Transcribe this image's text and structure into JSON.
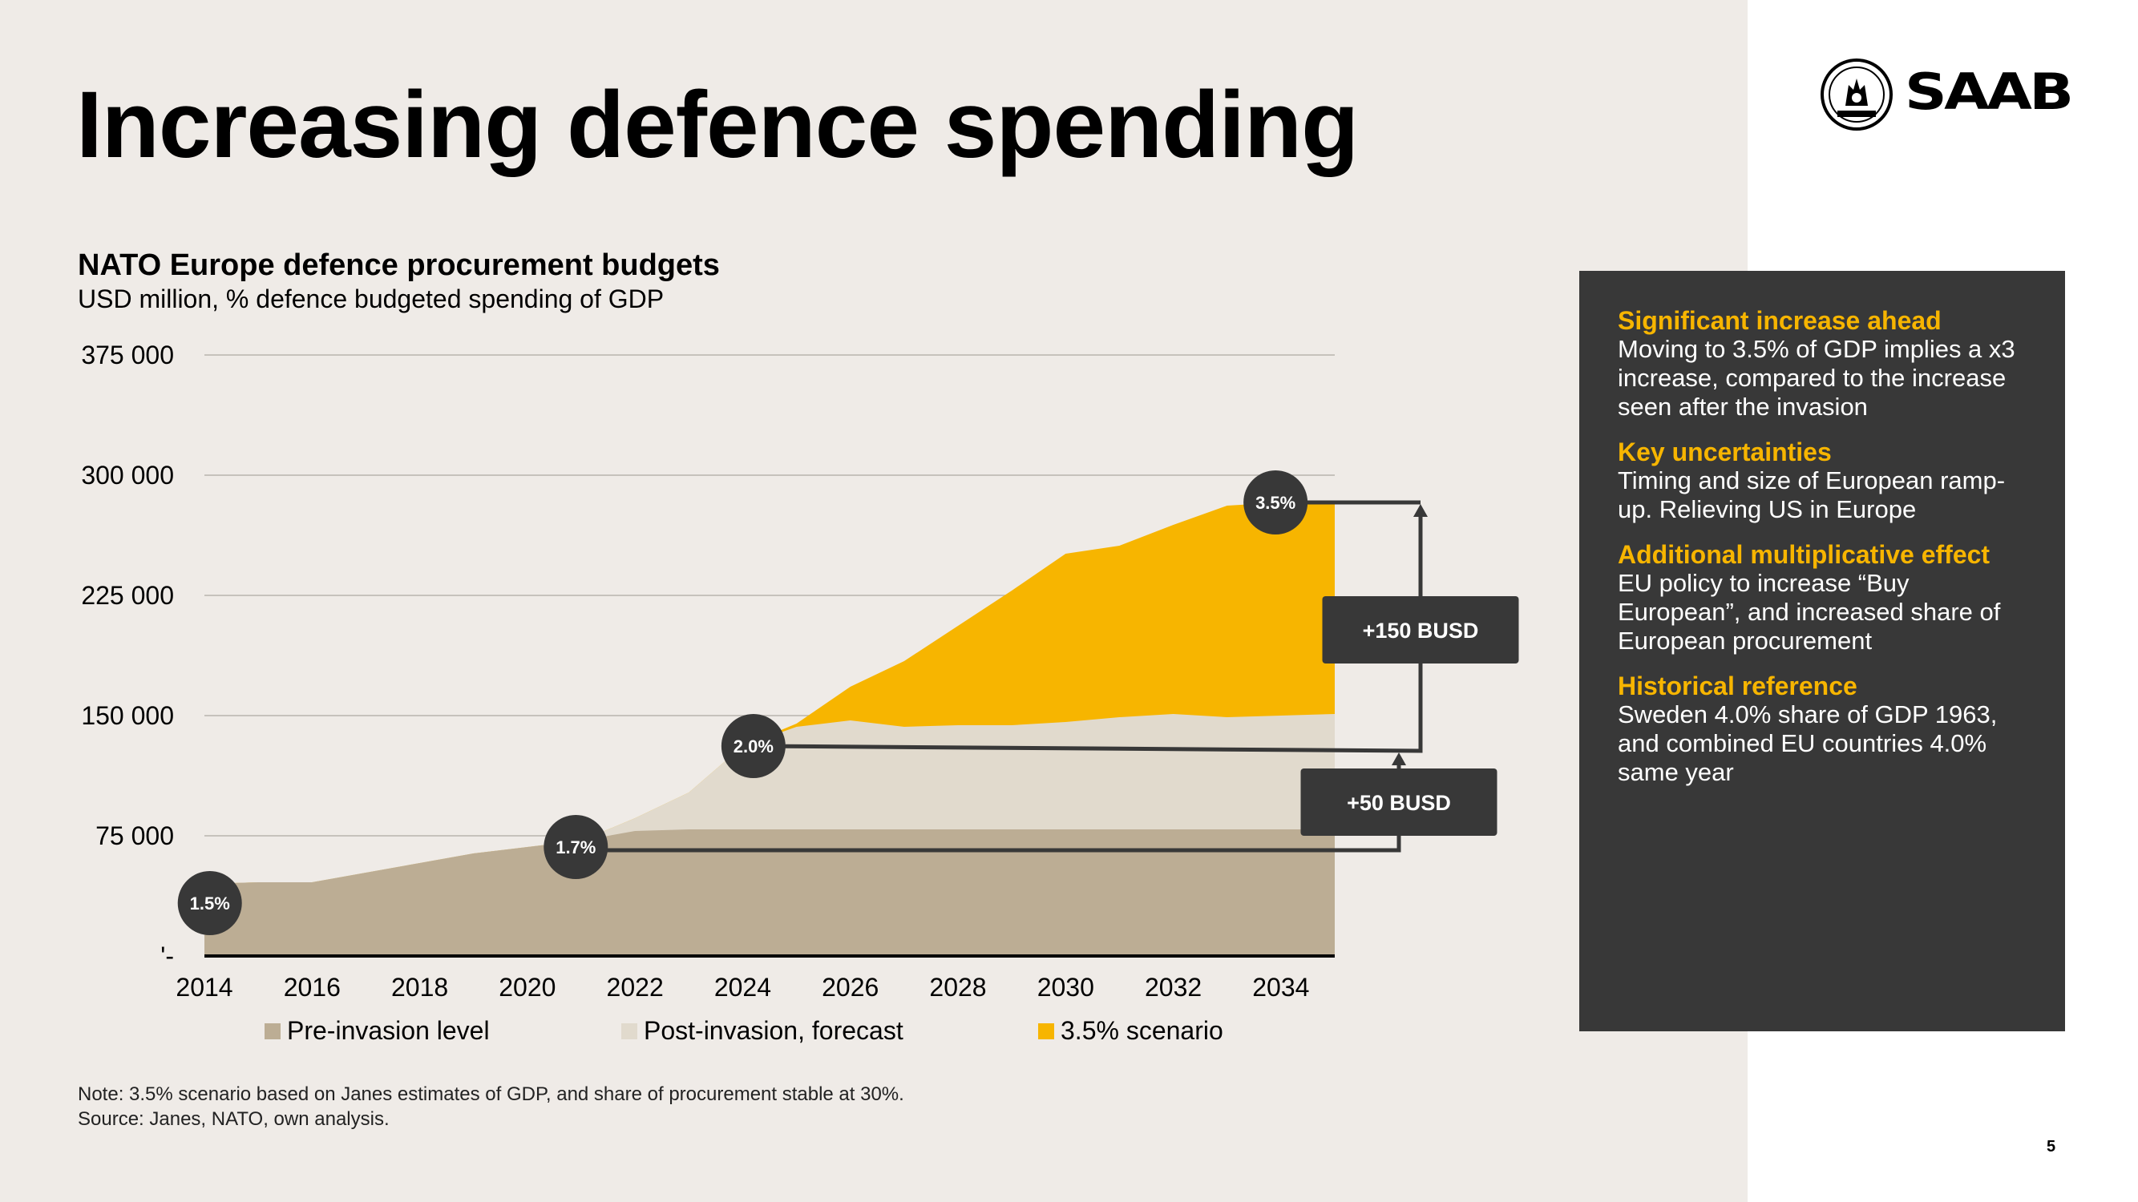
{
  "slide": {
    "title": "Increasing defence spending",
    "notes": [
      "Note: 3.5% scenario based on Janes estimates of GDP, and share of procurement stable at 30%.",
      "Source: Janes, NATO, own analysis."
    ],
    "page_number": "5"
  },
  "logo": {
    "text": "SAAB",
    "icon": "saab-griffin-emblem-icon"
  },
  "info_box": {
    "sections": [
      {
        "heading": "Significant increase ahead",
        "body": "Moving to 3.5% of GDP implies a x3 increase, compared to the increase seen after the invasion"
      },
      {
        "heading": "Key uncertainties",
        "body": "Timing and size of European ramp-up. Relieving US in Europe"
      },
      {
        "heading": "Additional multiplicative effect",
        "body": "EU policy to increase “Buy European”, and increased share of European  procurement"
      },
      {
        "heading": "Historical reference",
        "body": "Sweden 4.0% share of GDP 1963, and combined EU countries 4.0% same year"
      }
    ]
  },
  "chart_data": {
    "type": "area",
    "title": "NATO Europe defence procurement budgets",
    "subtitle": "USD million, % defence budgeted spending of GDP",
    "x": [
      2014,
      2015,
      2016,
      2017,
      2018,
      2019,
      2020,
      2021,
      2022,
      2023,
      2024,
      2025,
      2026,
      2027,
      2028,
      2029,
      2030,
      2031,
      2032,
      2033,
      2034,
      2035
    ],
    "xticks": [
      "2014",
      "2016",
      "2018",
      "2020",
      "2022",
      "2024",
      "2026",
      "2028",
      "2030",
      "2032",
      "2034"
    ],
    "yticks": [
      "'-",
      "75 000",
      "150 000",
      "225 000",
      "300 000",
      "375 000"
    ],
    "ytick_values": [
      0,
      75000,
      150000,
      225000,
      300000,
      375000
    ],
    "ylim": [
      0,
      375000
    ],
    "grid": true,
    "legend_position": "bottom",
    "series": [
      {
        "name": "Pre-invasion level",
        "color": "#bcad94",
        "values": [
          45000,
          46000,
          46000,
          52000,
          58000,
          64000,
          68000,
          72000,
          78000,
          79000,
          79000,
          79000,
          79000,
          79000,
          79000,
          79000,
          79000,
          79000,
          79000,
          79000,
          79000,
          79000
        ]
      },
      {
        "name": "Post-invasion, forecast",
        "color": "#e1dacd",
        "values": [
          45000,
          46000,
          46000,
          52000,
          58000,
          64000,
          68000,
          72000,
          86000,
          102000,
          131000,
          143000,
          147000,
          143000,
          144000,
          144000,
          146000,
          149000,
          151000,
          149000,
          150000,
          151000
        ]
      },
      {
        "name": "3.5% scenario",
        "color": "#f7b500",
        "values": [
          45000,
          46000,
          46000,
          52000,
          58000,
          64000,
          68000,
          72000,
          86000,
          102000,
          131000,
          145000,
          168000,
          184000,
          206000,
          228000,
          251000,
          256000,
          269000,
          281000,
          283000,
          283000
        ]
      }
    ],
    "annotations": {
      "gdp_markers": [
        {
          "label": "1.5%",
          "x": 2014.1,
          "y": 33000
        },
        {
          "label": "1.7%",
          "x": 2020.9,
          "y": 68000
        },
        {
          "label": "2.0%",
          "x": 2024.2,
          "y": 131000
        },
        {
          "label": "3.5%",
          "x": 2033.9,
          "y": 283000
        }
      ],
      "reference_lines": [
        {
          "x_start": 2020.9,
          "x_end": 2035,
          "y": 66000
        },
        {
          "x_start": 2024.2,
          "x_end": 2035,
          "y": 131000,
          "y_end": 128000
        }
      ],
      "callouts": [
        {
          "label": "+50 BUSD",
          "connector_y": [
            66000,
            128000
          ]
        },
        {
          "label": "+150 BUSD",
          "connector_y": [
            128000,
            283000
          ]
        }
      ]
    }
  }
}
